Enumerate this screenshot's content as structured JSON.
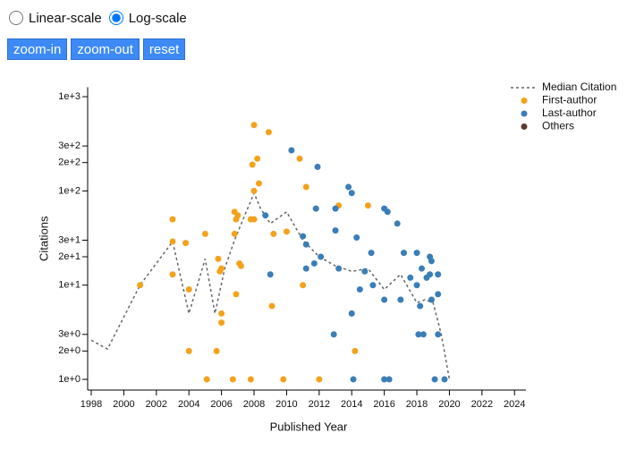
{
  "controls": {
    "scale_options": [
      "Linear-scale",
      "Log-scale"
    ],
    "selected": 1,
    "buttons": [
      "zoom-in",
      "zoom-out",
      "reset"
    ]
  },
  "chart_data": {
    "type": "scatter",
    "x_label": "Published Year",
    "y_label": "Citations",
    "log_y": true,
    "xlim": [
      1998,
      2024.7
    ],
    "xticks": [
      1998,
      2000,
      2002,
      2004,
      2006,
      2008,
      2010,
      2012,
      2014,
      2016,
      2018,
      2020,
      2022,
      2024
    ],
    "ylim": [
      0.77,
      1260
    ],
    "yticks": [
      {
        "value": 1,
        "label": "1e+0"
      },
      {
        "value": 2,
        "label": "2e+0"
      },
      {
        "value": 3,
        "label": "3e+0"
      },
      {
        "value": 10,
        "label": "1e+1"
      },
      {
        "value": 20,
        "label": "2e+1"
      },
      {
        "value": 30,
        "label": "3e+1"
      },
      {
        "value": 100,
        "label": "1e+2"
      },
      {
        "value": 200,
        "label": "2e+2"
      },
      {
        "value": 300,
        "label": "3e+2"
      },
      {
        "value": 1000,
        "label": "1e+3"
      }
    ],
    "series": [
      {
        "name": "Median Citation",
        "color": "#666666",
        "line": true,
        "x": [
          1998,
          1999,
          2001,
          2003,
          2004,
          2005,
          2005.6,
          2006.2,
          2006.8,
          2008,
          2008.4,
          2009,
          2010,
          2011,
          2012,
          2013,
          2014,
          2015,
          2016,
          2017,
          2018,
          2018.5,
          2019,
          2019.5,
          2020
        ],
        "values": [
          2.6,
          2.1,
          10,
          29,
          5,
          19,
          5,
          15,
          30,
          95,
          65,
          45,
          60,
          30,
          20,
          16,
          14,
          15,
          9,
          13,
          6.5,
          7,
          6.5,
          3,
          1
        ]
      },
      {
        "name": "First-author",
        "color": "#f4a21c",
        "x": [
          2001,
          2003,
          2003,
          2003.8,
          2003,
          2004,
          2004,
          2005,
          2005.1,
          2005.7,
          2005.8,
          2005.9,
          2006,
          2006,
          2006,
          2006.7,
          2006.8,
          2006.8,
          2006.9,
          2007,
          2006.9,
          2007.1,
          2007.2,
          2007.8,
          2008,
          2007.9,
          2008.2,
          2008.3,
          2008,
          2007.8,
          2008,
          2008.9,
          2009.2,
          2009.1,
          2009.8,
          2010,
          2010.8,
          2011.2,
          2011,
          2012,
          2013.2,
          2014,
          2014.2,
          2015
        ],
        "values": [
          10,
          50,
          29,
          28,
          13,
          9,
          2,
          35,
          1,
          2,
          19,
          14,
          5,
          4,
          15,
          1,
          35,
          60,
          50,
          55,
          8,
          17,
          16,
          1,
          500,
          190,
          220,
          120,
          100,
          50,
          50,
          420,
          35,
          6,
          1,
          37,
          220,
          110,
          10,
          1,
          70,
          5,
          2,
          70
        ]
      },
      {
        "name": "Last-author",
        "color": "#3a7eb8",
        "x": [
          2008.7,
          2009,
          2010.3,
          2011,
          2011.2,
          2011.2,
          2011.7,
          2011.8,
          2011.9,
          2012.1,
          2012.9,
          2013,
          2013,
          2013.2,
          2013.8,
          2014,
          2014,
          2014.1,
          2014.3,
          2014.5,
          2014.8,
          2015.2,
          2015.3,
          2016,
          2016,
          2016,
          2016.2,
          2016.3,
          2016.8,
          2017,
          2017.2,
          2017.6,
          2018,
          2018,
          2018.1,
          2018.2,
          2018.3,
          2018.4,
          2018.6,
          2018.8,
          2018.9,
          2018.8,
          2018.9,
          2019.1,
          2019.3,
          2019.3,
          2019.3,
          2019.7
        ],
        "values": [
          55,
          13,
          270,
          33,
          27,
          15,
          17,
          65,
          180,
          20,
          3,
          65,
          38,
          15,
          110,
          95,
          5,
          1,
          32,
          9,
          14,
          22,
          10,
          65,
          7,
          1,
          60,
          1,
          45,
          7,
          22,
          12,
          22,
          10,
          3,
          6,
          15,
          3,
          12,
          20,
          18,
          13,
          7,
          1,
          3,
          8,
          13,
          1
        ]
      },
      {
        "name": "Others",
        "color": "#5b3b2e",
        "x": [],
        "values": []
      }
    ]
  }
}
